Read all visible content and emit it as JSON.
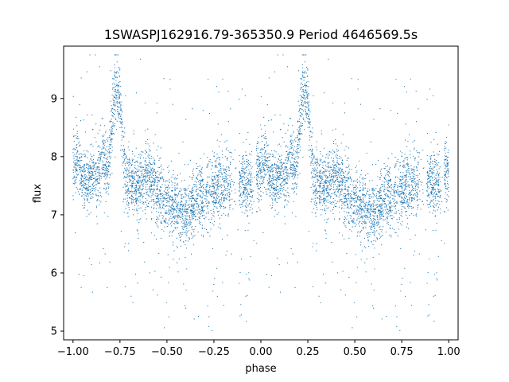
{
  "chart_data": {
    "type": "scatter",
    "title": "1SWASPJ162916.79-365350.9 Period 4646569.5s",
    "xlabel": "phase",
    "ylabel": "flux",
    "xlim": [
      -1.05,
      1.05
    ],
    "ylim": [
      4.85,
      9.9
    ],
    "x_ticks": [
      -1.0,
      -0.75,
      -0.5,
      -0.25,
      0.0,
      0.25,
      0.5,
      0.75,
      1.0
    ],
    "x_tick_labels": [
      "−1.00",
      "−0.75",
      "−0.50",
      "−0.25",
      "0.00",
      "0.25",
      "0.50",
      "0.75",
      "1.00"
    ],
    "y_ticks": [
      5,
      6,
      7,
      8,
      9
    ],
    "y_tick_labels": [
      "5",
      "6",
      "7",
      "8",
      "9"
    ],
    "grid": false,
    "marker_color": "#1f77b4",
    "marker_size": 0.6,
    "series": [
      {
        "note_phase_folded": true,
        "profile": [
          {
            "x": 0.0,
            "y": 7.8
          },
          {
            "x": 0.03,
            "y": 8.0
          },
          {
            "x": 0.05,
            "y": 7.6
          },
          {
            "x": 0.08,
            "y": 7.5
          },
          {
            "x": 0.1,
            "y": 7.7
          },
          {
            "x": 0.13,
            "y": 7.6
          },
          {
            "x": 0.16,
            "y": 7.9
          },
          {
            "x": 0.19,
            "y": 7.8
          },
          {
            "x": 0.22,
            "y": 9.1
          },
          {
            "x": 0.25,
            "y": 8.9
          },
          {
            "x": 0.28,
            "y": 7.6
          },
          {
            "x": 0.31,
            "y": 7.6
          },
          {
            "x": 0.35,
            "y": 7.5
          },
          {
            "x": 0.4,
            "y": 7.7
          },
          {
            "x": 0.45,
            "y": 7.4
          },
          {
            "x": 0.5,
            "y": 7.3
          },
          {
            "x": 0.55,
            "y": 7.1
          },
          {
            "x": 0.6,
            "y": 7.0
          },
          {
            "x": 0.65,
            "y": 7.2
          },
          {
            "x": 0.7,
            "y": 7.3
          },
          {
            "x": 0.75,
            "y": 7.4
          },
          {
            "x": 0.8,
            "y": 7.6
          },
          {
            "x": 0.85,
            "y": 7.5
          },
          {
            "x": 0.9,
            "y": 7.6
          },
          {
            "x": 0.95,
            "y": 7.5
          },
          {
            "x": 1.0,
            "y": 7.8
          }
        ],
        "gaps": [
          [
            0.845,
            0.885
          ],
          [
            0.955,
            0.975
          ]
        ]
      }
    ]
  }
}
